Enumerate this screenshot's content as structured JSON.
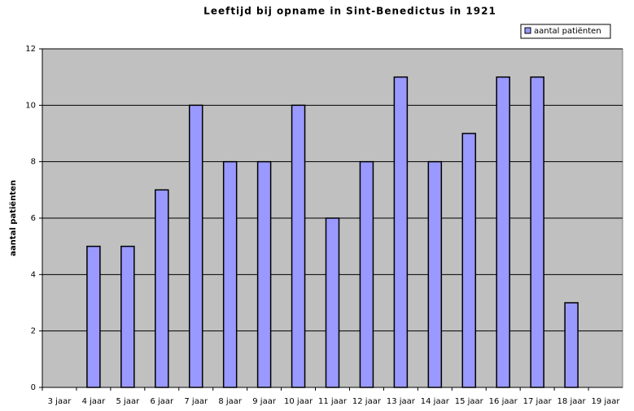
{
  "chart_data": {
    "type": "bar",
    "title": "Leeftijd bij opname in Sint-Benedictus in 1921",
    "y_label": "aantal patiënten",
    "categories": [
      "3 jaar",
      "4 jaar",
      "5 jaar",
      "6 jaar",
      "7 jaar",
      "8 jaar",
      "9 jaar",
      "10 jaar",
      "11 jaar",
      "12 jaar",
      "13 jaar",
      "14 jaar",
      "15 jaar",
      "16 jaar",
      "17 jaar",
      "18 jaar",
      "19 jaar"
    ],
    "series": [
      {
        "name": "aantal patiënten",
        "color": "#9999ff",
        "values": [
          0,
          5,
          5,
          7,
          10,
          8,
          8,
          10,
          6,
          8,
          11,
          8,
          9,
          11,
          11,
          3,
          0
        ]
      }
    ],
    "ylim": [
      0,
      12
    ],
    "yticks": [
      0,
      2,
      4,
      6,
      8,
      10,
      12
    ],
    "grid": true,
    "legend": "top-right"
  }
}
